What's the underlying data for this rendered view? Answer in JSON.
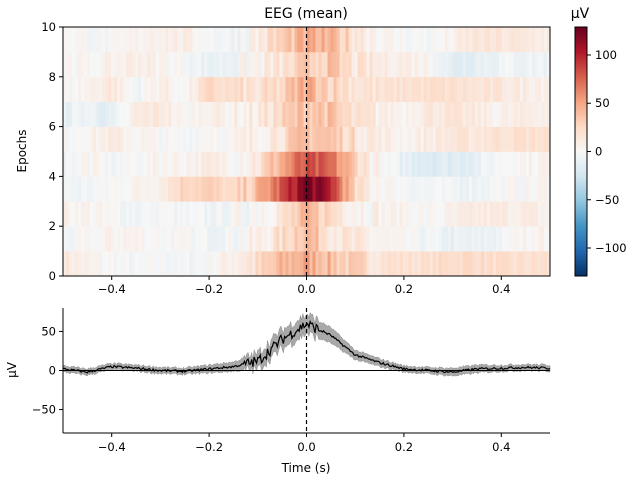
{
  "chart_data": [
    {
      "type": "heatmap",
      "title": "EEG (mean)",
      "xlabel": "",
      "ylabel": "Epochs",
      "xlim": [
        -0.5,
        0.5
      ],
      "ylim": [
        0,
        10
      ],
      "xticks": [
        "−0.4",
        "−0.2",
        "0.0",
        "0.2",
        "0.4"
      ],
      "xtick_values": [
        -0.4,
        -0.2,
        0.0,
        0.2,
        0.4
      ],
      "yticks": [
        "0",
        "2",
        "4",
        "6",
        "8",
        "10"
      ],
      "ytick_values": [
        0,
        2,
        4,
        6,
        8,
        10
      ],
      "colormap": "RdBu_r",
      "vlim": [
        -129,
        129
      ],
      "event_marker": {
        "x": 0.0,
        "style": "dashed",
        "color": "#000000"
      },
      "colorbar": {
        "label": "µV",
        "ticks": [
          "100",
          "50",
          "0",
          "−50",
          "−100"
        ],
        "tick_values": [
          100,
          50,
          0,
          -50,
          -100
        ]
      },
      "time_samples": [
        -0.5,
        -0.45,
        -0.4,
        -0.35,
        -0.3,
        -0.25,
        -0.2,
        -0.15,
        -0.1,
        -0.05,
        0.0,
        0.05,
        0.1,
        0.15,
        0.2,
        0.25,
        0.3,
        0.35,
        0.4,
        0.45,
        0.5
      ],
      "epochs": [
        [
          15,
          5,
          0,
          -5,
          0,
          -5,
          0,
          10,
          20,
          40,
          50,
          40,
          25,
          20,
          20,
          20,
          25,
          25,
          20,
          20,
          20
        ],
        [
          -5,
          0,
          5,
          5,
          0,
          0,
          -5,
          0,
          5,
          20,
          45,
          20,
          10,
          5,
          0,
          -5,
          -10,
          -10,
          -5,
          5,
          5
        ],
        [
          5,
          5,
          0,
          -5,
          0,
          -5,
          -5,
          -3,
          5,
          15,
          40,
          25,
          10,
          5,
          5,
          0,
          5,
          10,
          10,
          10,
          5
        ],
        [
          -5,
          -5,
          0,
          5,
          10,
          30,
          30,
          20,
          40,
          80,
          125,
          100,
          20,
          5,
          0,
          -5,
          -5,
          -5,
          0,
          0,
          5
        ],
        [
          -5,
          5,
          -5,
          0,
          5,
          5,
          10,
          5,
          15,
          50,
          80,
          70,
          30,
          0,
          -10,
          -15,
          -15,
          -10,
          0,
          5,
          5
        ],
        [
          0,
          5,
          10,
          5,
          0,
          -3,
          5,
          0,
          10,
          20,
          40,
          35,
          20,
          10,
          5,
          10,
          15,
          15,
          20,
          20,
          20
        ],
        [
          -10,
          -5,
          -15,
          10,
          15,
          0,
          10,
          5,
          10,
          25,
          40,
          35,
          15,
          10,
          5,
          15,
          15,
          10,
          5,
          10,
          10
        ],
        [
          0,
          5,
          15,
          -5,
          10,
          0,
          25,
          20,
          15,
          25,
          50,
          30,
          20,
          15,
          20,
          20,
          20,
          15,
          15,
          10,
          10
        ],
        [
          5,
          0,
          5,
          10,
          5,
          0,
          -10,
          -5,
          5,
          15,
          30,
          35,
          15,
          10,
          10,
          5,
          -15,
          -10,
          -5,
          -5,
          -5
        ],
        [
          5,
          0,
          -3,
          5,
          10,
          8,
          0,
          -5,
          10,
          30,
          45,
          40,
          20,
          5,
          0,
          -2,
          5,
          15,
          15,
          12,
          10
        ]
      ]
    },
    {
      "type": "line",
      "xlabel": "Time (s)",
      "ylabel": "µV",
      "xlim": [
        -0.5,
        0.5
      ],
      "ylim": [
        -80,
        80
      ],
      "xticks": [
        "−0.4",
        "−0.2",
        "0.0",
        "0.2",
        "0.4"
      ],
      "xtick_values": [
        -0.4,
        -0.2,
        0.0,
        0.2,
        0.4
      ],
      "yticks": [
        "50",
        "0",
        "−50"
      ],
      "ytick_values": [
        50,
        0,
        -50
      ],
      "line_color": "#000000",
      "band_color": "#a9a9a9",
      "x": [
        -0.5,
        -0.45,
        -0.4,
        -0.35,
        -0.3,
        -0.25,
        -0.2,
        -0.15,
        -0.1,
        -0.05,
        0.0,
        0.05,
        0.1,
        0.15,
        0.2,
        0.25,
        0.3,
        0.35,
        0.4,
        0.45,
        0.5
      ],
      "mean": [
        2,
        -2,
        5,
        3,
        0,
        -1,
        2,
        5,
        12,
        40,
        60,
        45,
        20,
        10,
        2,
        0,
        -2,
        2,
        3,
        4,
        3
      ],
      "sem": [
        4,
        4,
        4,
        4,
        4,
        4,
        5,
        6,
        10,
        12,
        12,
        10,
        6,
        5,
        4,
        4,
        5,
        5,
        4,
        4,
        4
      ]
    }
  ]
}
